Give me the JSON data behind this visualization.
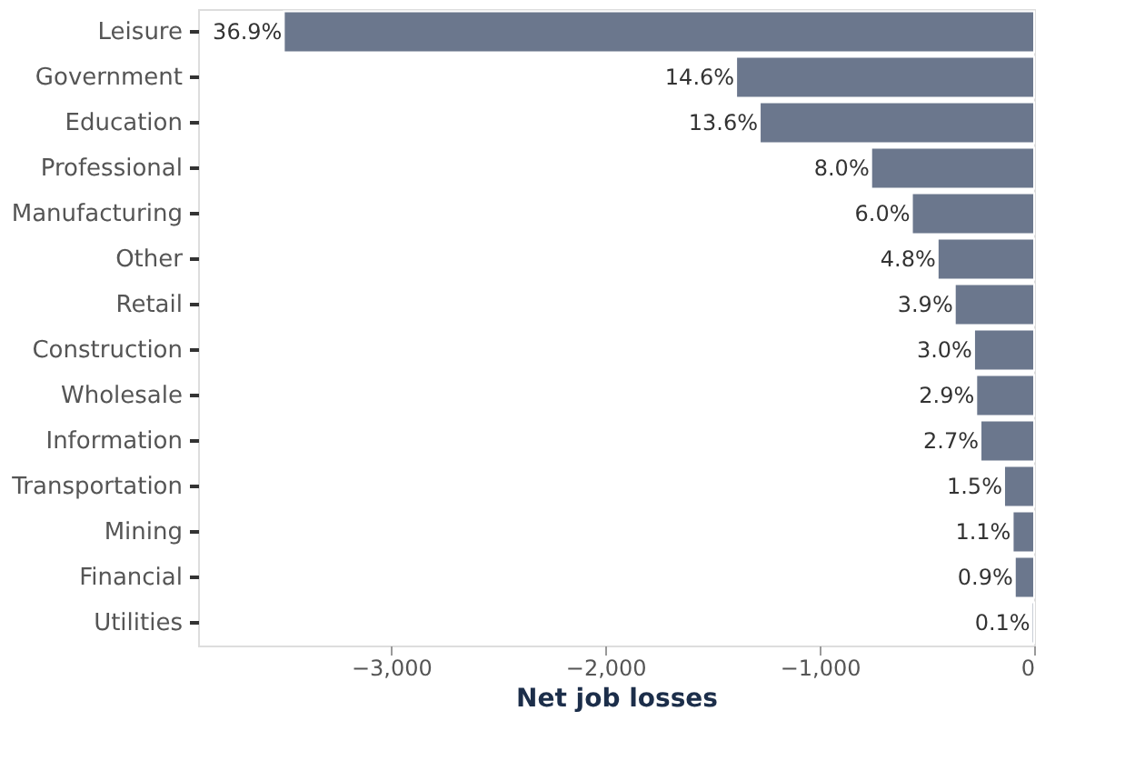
{
  "chart_data": {
    "type": "bar",
    "orientation": "horizontal",
    "xlabel": "Net job losses",
    "categories": [
      "Leisure",
      "Government",
      "Education",
      "Professional",
      "Manufacturing",
      "Other",
      "Retail",
      "Construction",
      "Wholesale",
      "Information",
      "Transportation",
      "Mining",
      "Financial",
      "Utilities"
    ],
    "values": [
      -3500,
      -1390,
      -1280,
      -760,
      -570,
      -450,
      -370,
      -280,
      -270,
      -250,
      -140,
      -100,
      -90,
      -10
    ],
    "annotations": [
      {
        "text": "36.9%",
        "x": -3500,
        "y": "Leisure"
      },
      {
        "text": "14.6%",
        "x": -1390,
        "y": "Government"
      },
      {
        "text": "13.6%",
        "x": -1280,
        "y": "Education"
      },
      {
        "text": "8.0%",
        "x": -760,
        "y": "Professional"
      },
      {
        "text": "6.0%",
        "x": -570,
        "y": "Manufacturing"
      },
      {
        "text": "4.8%",
        "x": -450,
        "y": "Other"
      },
      {
        "text": "3.9%",
        "x": -370,
        "y": "Retail"
      },
      {
        "text": "3.0%",
        "x": -280,
        "y": "Construction"
      },
      {
        "text": "2.9%",
        "x": -270,
        "y": "Wholesale"
      },
      {
        "text": "2.7%",
        "x": -250,
        "y": "Information"
      },
      {
        "text": "1.5%",
        "x": -140,
        "y": "Transportation"
      },
      {
        "text": "1.1%",
        "x": -100,
        "y": "Mining"
      },
      {
        "text": "0.9%",
        "x": -90,
        "y": "Financial"
      },
      {
        "text": "0.1%",
        "x": -10,
        "y": "Utilities"
      }
    ],
    "color": "#6b778d",
    "xlim": [
      -3900,
      0
    ],
    "xticks": [
      {
        "value": -3000,
        "label": "−3,000"
      },
      {
        "value": -2000,
        "label": "−2,000"
      },
      {
        "value": -1000,
        "label": "−1,000"
      },
      0
    ],
    "grid": false
  }
}
